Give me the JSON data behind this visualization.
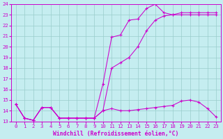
{
  "xlabel": "Windchill (Refroidissement éolien,°C)",
  "background_color": "#c5edf0",
  "grid_color": "#99cccc",
  "line_color": "#cc00cc",
  "x_values": [
    0,
    1,
    2,
    3,
    4,
    5,
    6,
    7,
    8,
    9,
    10,
    11,
    12,
    13,
    14,
    15,
    16,
    17,
    18,
    19,
    20,
    21,
    22,
    23
  ],
  "series1": [
    14.6,
    13.3,
    13.1,
    14.3,
    14.3,
    13.3,
    13.3,
    13.3,
    13.3,
    13.3,
    16.5,
    20.9,
    21.1,
    22.5,
    22.6,
    23.6,
    24.0,
    23.2,
    23.0,
    23.2,
    23.2,
    23.2,
    23.2,
    23.2
  ],
  "series2": [
    14.6,
    13.3,
    13.1,
    14.3,
    14.3,
    13.3,
    13.3,
    13.3,
    13.3,
    13.3,
    14.0,
    18.0,
    18.5,
    19.0,
    20.0,
    21.5,
    22.5,
    22.9,
    23.0,
    23.0,
    23.0,
    23.0,
    23.0,
    23.0
  ],
  "series3": [
    14.6,
    13.3,
    13.1,
    14.3,
    14.3,
    13.3,
    13.3,
    13.3,
    13.3,
    13.3,
    14.0,
    14.2,
    14.0,
    14.0,
    14.1,
    14.2,
    14.3,
    14.4,
    14.5,
    14.9,
    15.0,
    14.8,
    14.2,
    13.4
  ],
  "ylim_min": 13,
  "ylim_max": 24,
  "xlim_min": -0.5,
  "xlim_max": 23.5,
  "yticks": [
    13,
    14,
    15,
    16,
    17,
    18,
    19,
    20,
    21,
    22,
    23,
    24
  ],
  "xticks": [
    0,
    1,
    2,
    3,
    4,
    5,
    6,
    7,
    8,
    9,
    10,
    11,
    12,
    13,
    14,
    15,
    16,
    17,
    18,
    19,
    20,
    21,
    22,
    23
  ],
  "tick_fontsize": 5.2,
  "xlabel_fontsize": 5.8,
  "linewidth": 0.75,
  "markersize": 3.5,
  "markeredgewidth": 0.8
}
